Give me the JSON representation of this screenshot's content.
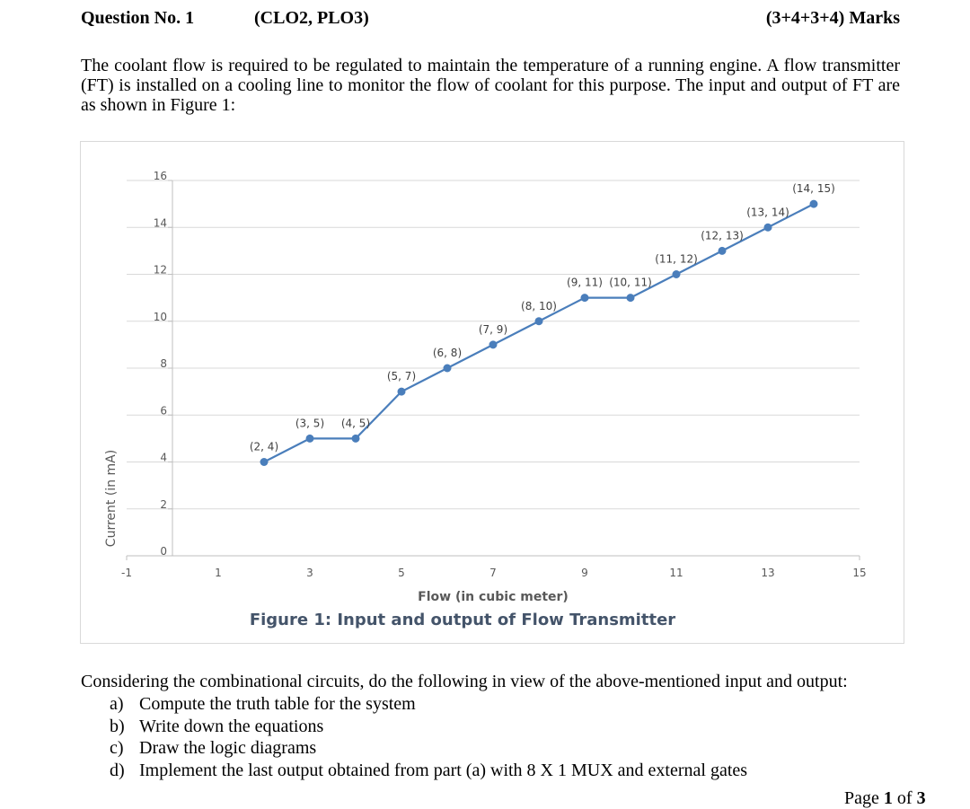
{
  "header": {
    "question": "Question No. 1",
    "clo": "(CLO2, PLO3)",
    "marks": "(3+4+3+4) Marks"
  },
  "intro": "The coolant flow is required to be regulated to maintain the temperature of a running engine. A flow transmitter (FT) is installed on a cooling line to monitor the flow of coolant for this purpose. The input and output of FT are as shown in Figure 1:",
  "chart_data": {
    "type": "scatter",
    "mode": "line+markers",
    "caption": "Figure 1: Input and output of Flow Transmitter",
    "xlabel": "Flow (in cubic meter)",
    "ylabel": "Current (in mA)",
    "xlim": [
      -1,
      15
    ],
    "ylim": [
      0,
      16
    ],
    "x_ticks": [
      -1,
      1,
      3,
      5,
      7,
      9,
      11,
      13,
      15
    ],
    "y_ticks": [
      0,
      2,
      4,
      6,
      8,
      10,
      12,
      14,
      16
    ],
    "gridlines": "horizontal",
    "series_color": "#4a7ebb",
    "x": [
      2,
      3,
      4,
      5,
      6,
      7,
      8,
      9,
      10,
      11,
      12,
      13,
      14
    ],
    "y": [
      4,
      5,
      5,
      7,
      8,
      9,
      10,
      11,
      11,
      12,
      13,
      14,
      15
    ],
    "point_labels": [
      "(2, 4)",
      "(3, 5)",
      "(4, 5)",
      "(5, 7)",
      "(6, 8)",
      "(7, 9)",
      "(8, 10)",
      "(9, 11)",
      "(10, 11)",
      "(11, 12)",
      "(12, 13)",
      "(13, 14)",
      "(14, 15)"
    ]
  },
  "tasks": {
    "intro": "Considering the combinational circuits, do the following in view of the above-mentioned input and output:",
    "items": [
      {
        "marker": "a)",
        "text": "Compute the truth table for the system"
      },
      {
        "marker": "b)",
        "text": "Write down the equations"
      },
      {
        "marker": "c)",
        "text": "Draw the logic diagrams"
      },
      {
        "marker": "d)",
        "text": "Implement the last output obtained from part (a) with 8 X 1 MUX and external gates"
      }
    ]
  },
  "footer": {
    "page_prefix": "Page ",
    "page_current": "1",
    "page_mid": " of ",
    "page_total": "3"
  }
}
